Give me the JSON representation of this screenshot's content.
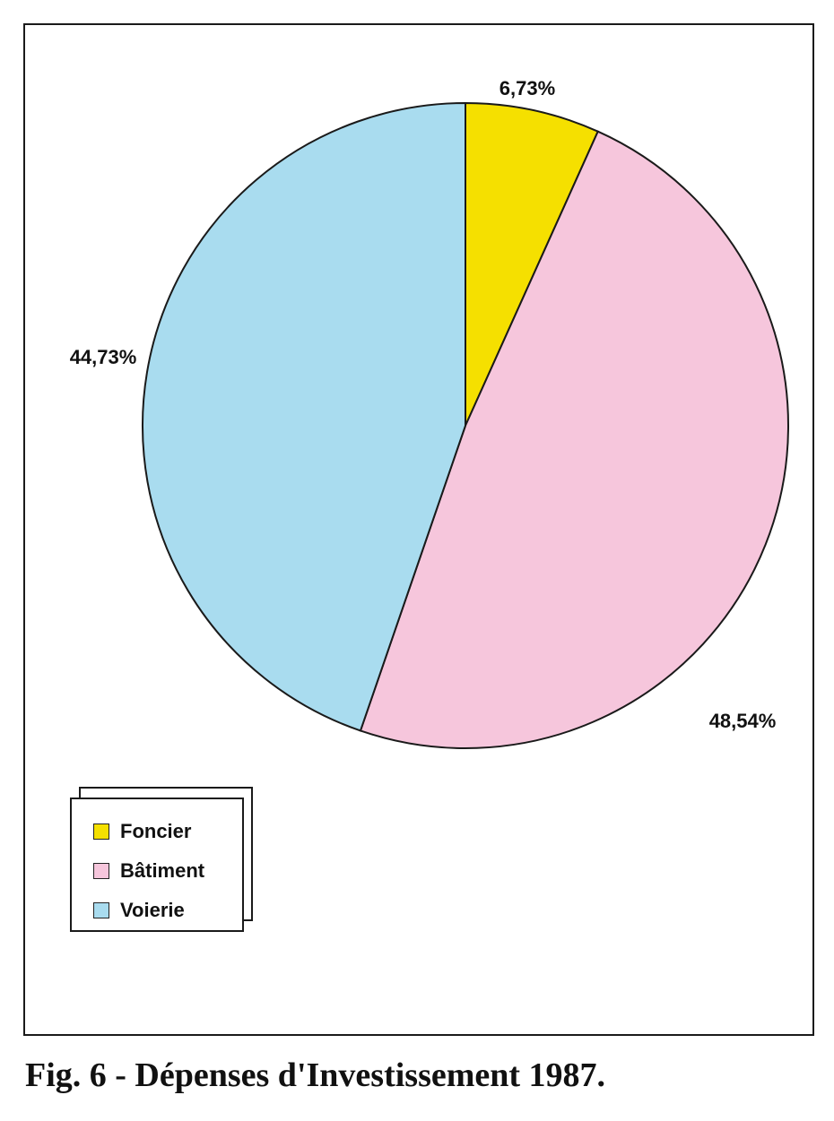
{
  "caption": "Fig. 6 - Dépenses d'Investissement 1987.",
  "chart_data": {
    "type": "pie",
    "title": "",
    "slices": [
      {
        "label": "Foncier",
        "value": 6.73,
        "display": "6,73%",
        "color": "#f5e000"
      },
      {
        "label": "Bâtiment",
        "value": 48.54,
        "display": "48,54%",
        "color": "#f6c6dc"
      },
      {
        "label": "Voierie",
        "value": 44.73,
        "display": "44,73%",
        "color": "#a9dcef"
      }
    ],
    "start": "12 o'clock",
    "direction": "clockwise",
    "legend_position": "bottom-left"
  }
}
